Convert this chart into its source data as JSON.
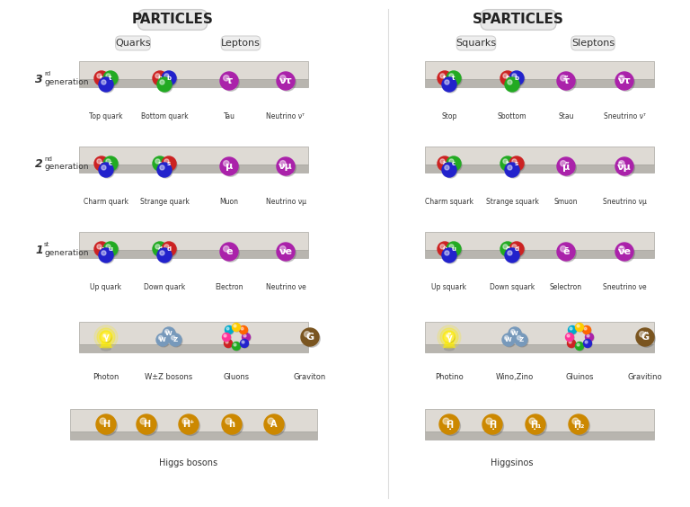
{
  "bg_color": "#ffffff",
  "title_particles": "PARTICLES",
  "title_sparticles": "SPARTICLES",
  "quark_red": "#cc2222",
  "quark_green": "#22aa22",
  "quark_blue": "#2222cc",
  "lepton_color": "#aa22aa",
  "photon_color": "#ffee00",
  "wz_color": "#7799bb",
  "gluon_colors": [
    "#cc2222",
    "#22aa22",
    "#2222cc",
    "#aa22aa",
    "#ff6600",
    "#ffcc00",
    "#00aacc",
    "#ff3399"
  ],
  "graviton_color": "#7a5520",
  "higgs_color": "#cc8800",
  "gen_rows": [
    {
      "label": "3",
      "sup": "rd",
      "particles": [
        {
          "name": "Top quark",
          "triple": true,
          "colors": [
            "#cc2222",
            "#22aa22",
            "#2222cc"
          ],
          "syms": [
            "t",
            "t",
            ""
          ]
        },
        {
          "name": "Bottom quark",
          "triple": true,
          "colors": [
            "#cc2222",
            "#2222cc",
            "#22aa22"
          ],
          "syms": [
            "b",
            "b",
            ""
          ]
        },
        {
          "name": "Tau",
          "triple": false,
          "colors": [
            "#aa22aa"
          ],
          "syms": [
            "τ"
          ]
        },
        {
          "name": "Neutrino νᵀ",
          "triple": false,
          "colors": [
            "#aa22aa"
          ],
          "syms": [
            "ντ"
          ]
        }
      ],
      "sparticles": [
        {
          "name": "Stop",
          "triple": true,
          "colors": [
            "#cc2222",
            "#22aa22",
            "#2222cc"
          ],
          "syms": [
            "t̃",
            "t",
            ""
          ]
        },
        {
          "name": "Sbottom",
          "triple": true,
          "colors": [
            "#cc2222",
            "#2222cc",
            "#22aa22"
          ],
          "syms": [
            "b̃",
            "b",
            ""
          ]
        },
        {
          "name": "Stau",
          "triple": false,
          "colors": [
            "#aa22aa"
          ],
          "syms": [
            "τ̃"
          ]
        },
        {
          "name": "Sneutrino νᵀ",
          "triple": false,
          "colors": [
            "#aa22aa"
          ],
          "syms": [
            "ν̃τ"
          ]
        }
      ]
    },
    {
      "label": "2",
      "sup": "nd",
      "particles": [
        {
          "name": "Charm quark",
          "triple": true,
          "colors": [
            "#cc2222",
            "#22aa22",
            "#2222cc"
          ],
          "syms": [
            "c",
            "c",
            ""
          ]
        },
        {
          "name": "Strange quark",
          "triple": true,
          "colors": [
            "#22aa22",
            "#cc2222",
            "#2222cc"
          ],
          "syms": [
            "s",
            "s",
            ""
          ]
        },
        {
          "name": "Muon",
          "triple": false,
          "colors": [
            "#aa22aa"
          ],
          "syms": [
            "μ"
          ]
        },
        {
          "name": "Neutrino νμ",
          "triple": false,
          "colors": [
            "#aa22aa"
          ],
          "syms": [
            "νμ"
          ]
        }
      ],
      "sparticles": [
        {
          "name": "Charm squark",
          "triple": true,
          "colors": [
            "#cc2222",
            "#22aa22",
            "#2222cc"
          ],
          "syms": [
            "c̃",
            "c",
            ""
          ]
        },
        {
          "name": "Strange squark",
          "triple": true,
          "colors": [
            "#22aa22",
            "#cc2222",
            "#2222cc"
          ],
          "syms": [
            "s̃",
            "s",
            ""
          ]
        },
        {
          "name": "Smuon",
          "triple": false,
          "colors": [
            "#aa22aa"
          ],
          "syms": [
            "μ̃"
          ]
        },
        {
          "name": "Sneutrino νμ",
          "triple": false,
          "colors": [
            "#aa22aa"
          ],
          "syms": [
            "ν̃μ"
          ]
        }
      ]
    },
    {
      "label": "1",
      "sup": "st",
      "particles": [
        {
          "name": "Up quark",
          "triple": true,
          "colors": [
            "#cc2222",
            "#22aa22",
            "#2222cc"
          ],
          "syms": [
            "u",
            "u",
            ""
          ]
        },
        {
          "name": "Down quark",
          "triple": true,
          "colors": [
            "#22aa22",
            "#cc2222",
            "#2222cc"
          ],
          "syms": [
            "d",
            "d",
            ""
          ]
        },
        {
          "name": "Electron",
          "triple": false,
          "colors": [
            "#aa22aa"
          ],
          "syms": [
            "e"
          ]
        },
        {
          "name": "Neutrino νe",
          "triple": false,
          "colors": [
            "#aa22aa"
          ],
          "syms": [
            "νe"
          ]
        }
      ],
      "sparticles": [
        {
          "name": "Up squark",
          "triple": true,
          "colors": [
            "#cc2222",
            "#22aa22",
            "#2222cc"
          ],
          "syms": [
            "ũ",
            "u",
            ""
          ]
        },
        {
          "name": "Down squark",
          "triple": true,
          "colors": [
            "#22aa22",
            "#cc2222",
            "#2222cc"
          ],
          "syms": [
            "d̃",
            "d",
            ""
          ]
        },
        {
          "name": "Selectron",
          "triple": false,
          "colors": [
            "#aa22aa"
          ],
          "syms": [
            "ẽ"
          ]
        },
        {
          "name": "Sneutrino νe",
          "triple": false,
          "colors": [
            "#aa22aa"
          ],
          "syms": [
            "ν̃e"
          ]
        }
      ]
    }
  ],
  "boson_labels": [
    "Photon",
    "W±Z bosons",
    "Gluons",
    "Graviton"
  ],
  "sboson_labels": [
    "Photino",
    "Wino,Zino",
    "Gluinos",
    "Gravitino"
  ],
  "higgs_syms": [
    "H",
    "H",
    "H⁺",
    "h",
    "A"
  ],
  "higgsino_syms": [
    "Ḥ̃",
    "Ḥ̃",
    "Ḥ̃₁",
    "Ḥ̃₂"
  ]
}
